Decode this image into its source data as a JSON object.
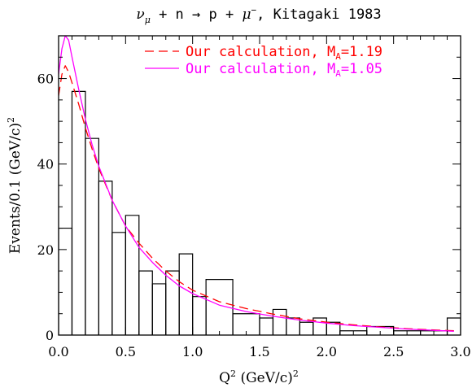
{
  "chart_data": {
    "type": "line",
    "title": {
      "nu": "ν",
      "nu_sub": "μ",
      "rest": " + n → p + ",
      "mu": "μ",
      "mu_sup": "−",
      "tail": ", Kitagaki 1983"
    },
    "xlabel": {
      "main": "Q",
      "sup": "2",
      "rest": " (GeV/c)",
      "rest_sup": "2"
    },
    "ylabel": {
      "main": "Events/0.1 (GeV/c)",
      "sup": "2"
    },
    "xlim": [
      0,
      3
    ],
    "ylim": [
      0,
      70
    ],
    "x_ticks": [
      0.0,
      0.5,
      1.0,
      1.5,
      2.0,
      2.5,
      3.0
    ],
    "x_tick_labels": [
      "0.0",
      "0.5",
      "1.0",
      "1.5",
      "2.0",
      "2.5",
      "3.0"
    ],
    "y_ticks": [
      0,
      20,
      40,
      60
    ],
    "y_tick_labels": [
      "0",
      "20",
      "40",
      "60"
    ],
    "legend_position": "top-right",
    "histogram": {
      "bin_edges": [
        0.0,
        0.1,
        0.2,
        0.3,
        0.4,
        0.5,
        0.6,
        0.7,
        0.8,
        0.9,
        1.0,
        1.1,
        1.3,
        1.5,
        1.6,
        1.7,
        1.8,
        1.9,
        2.0,
        2.1,
        2.3,
        2.5,
        2.7,
        2.9,
        3.0
      ],
      "counts": [
        25,
        57,
        46,
        36,
        24,
        28,
        15,
        12,
        15,
        19,
        9,
        13,
        5,
        4,
        6,
        4,
        3,
        4,
        3,
        1,
        2,
        1,
        1,
        4
      ],
      "color": "#000000"
    },
    "series": [
      {
        "name_main": "Our calculation, M",
        "name_sub": "A",
        "name_tail": "=1.19",
        "style": "dashed",
        "color": "#ff0000",
        "x": [
          0.0,
          0.025,
          0.05,
          0.075,
          0.1,
          0.15,
          0.2,
          0.25,
          0.3,
          0.4,
          0.5,
          0.6,
          0.7,
          0.8,
          0.9,
          1.0,
          1.2,
          1.4,
          1.6,
          1.8,
          2.0,
          2.2,
          2.4,
          2.6,
          2.8,
          2.95
        ],
        "y": [
          56,
          61,
          63,
          61.5,
          59,
          54,
          48.5,
          43.5,
          39,
          31.5,
          25.5,
          21.5,
          18,
          15,
          12.5,
          10.5,
          7.8,
          6.2,
          4.9,
          3.8,
          3.0,
          2.4,
          1.9,
          1.5,
          1.2,
          1.0
        ]
      },
      {
        "name_main": "Our calculation, M",
        "name_sub": "A",
        "name_tail": "=1.05",
        "style": "solid",
        "color": "#ff00ff",
        "x": [
          0.0,
          0.025,
          0.05,
          0.075,
          0.1,
          0.15,
          0.2,
          0.25,
          0.3,
          0.4,
          0.5,
          0.6,
          0.7,
          0.8,
          0.9,
          1.0,
          1.2,
          1.4,
          1.6,
          1.8,
          2.0,
          2.2,
          2.4,
          2.6,
          2.8,
          2.95
        ],
        "y": [
          61,
          67,
          70,
          69,
          65,
          57.5,
          50.5,
          44.5,
          39.5,
          31.5,
          25.5,
          20.5,
          17,
          14,
          11.5,
          9.7,
          7,
          5.5,
          4.4,
          3.5,
          2.8,
          2.2,
          1.8,
          1.4,
          1.1,
          0.9
        ]
      }
    ]
  }
}
